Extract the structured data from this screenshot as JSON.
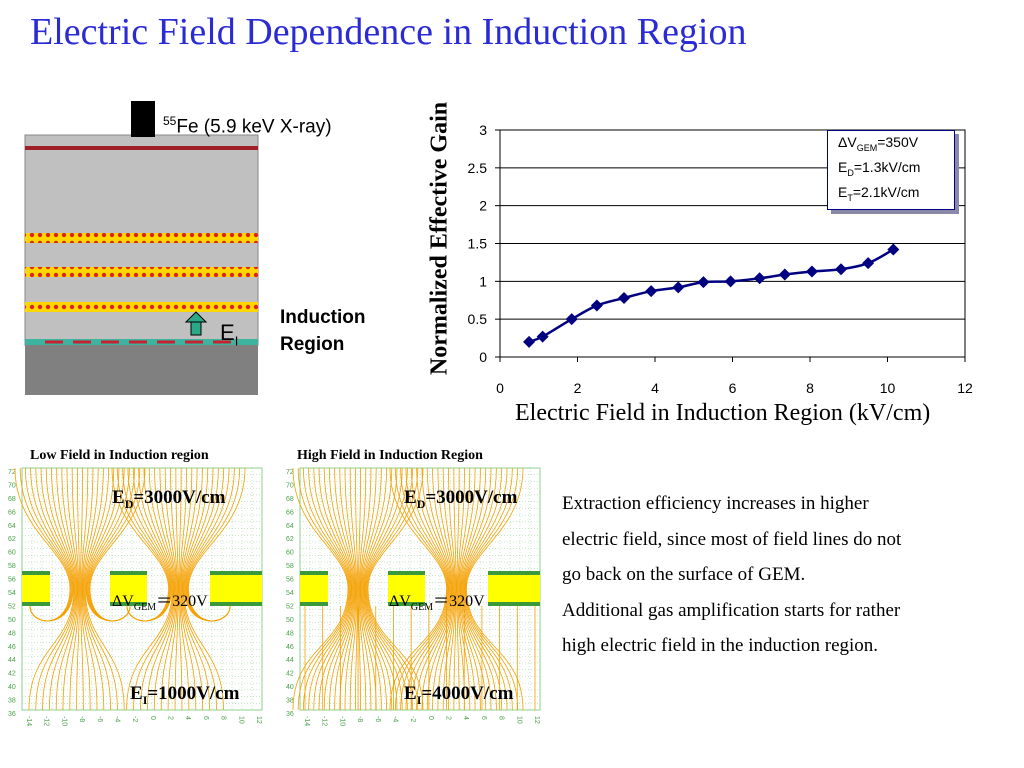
{
  "slide": {
    "title": "Electric Field Dependence in Induction Region"
  },
  "detector": {
    "source_sup": "55",
    "source_label": "Fe (5.9 keV X-ray)",
    "field_symbol": "E",
    "field_sub": "I",
    "region_line1": "Induction",
    "region_line2": "Region",
    "colors": {
      "drift": "#c0c0c0",
      "bottom": "#808080",
      "gem": "#ffd700",
      "gem_dots": "#dd2222",
      "top_line": "#a0202a",
      "readout": "#3cb4a0",
      "arrow": "#2aa888"
    }
  },
  "chart_data": {
    "type": "line",
    "xlabel": "Electric Field in Induction Region (kV/cm)",
    "ylabel": "Normalized Effective Gain",
    "xlim": [
      0,
      12
    ],
    "ylim": [
      0,
      3
    ],
    "xticks": [
      "0",
      "2",
      "4",
      "6",
      "8",
      "10",
      "12"
    ],
    "yticks": [
      "0",
      "0.5",
      "1",
      "1.5",
      "2",
      "2.5",
      "3"
    ],
    "grid": "horizontal",
    "legend_placement": "top-right",
    "legend": [
      {
        "sym": "ΔV",
        "sub": "GEM",
        "val": "=350V"
      },
      {
        "sym": "E",
        "sub": "D",
        "val": "=1.3kV/cm"
      },
      {
        "sym": "E",
        "sub": "T",
        "val": "=2.1kV/cm"
      }
    ],
    "series": [
      {
        "color": "#000080",
        "marker": "diamond",
        "x": [
          0.75,
          1.1,
          1.85,
          2.5,
          3.2,
          3.9,
          4.6,
          5.25,
          5.95,
          6.7,
          7.35,
          8.05,
          8.8,
          9.5,
          10.15
        ],
        "y": [
          0.2,
          0.27,
          0.5,
          0.68,
          0.78,
          0.87,
          0.92,
          0.99,
          1.0,
          1.04,
          1.09,
          1.13,
          1.16,
          1.24,
          1.42
        ]
      }
    ]
  },
  "panels": {
    "low": {
      "title": "Low Field in Induction region",
      "ed_sym": "E",
      "ed_sub": "D",
      "ed_val": "=3000V/cm",
      "vg_sym": "ΔV",
      "vg_sub": "GEM",
      "vg_val": "＝320V",
      "ei_sym": "E",
      "ei_sub": "I",
      "ei_val": "=1000V/cm",
      "yticks": [
        "72",
        "70",
        "68",
        "66",
        "64",
        "62",
        "60",
        "58",
        "56",
        "54",
        "52",
        "50",
        "48",
        "46",
        "44",
        "42",
        "40",
        "38",
        "36"
      ],
      "xticks": [
        "-14",
        "-12",
        "-10",
        "-8",
        "-6",
        "-4",
        "-2",
        "0",
        "2",
        "4",
        "6",
        "8",
        "10",
        "12"
      ]
    },
    "high": {
      "title": "High Field in Induction Region",
      "ed_sym": "E",
      "ed_sub": "D",
      "ed_val": "=3000V/cm",
      "vg_sym": "ΔV",
      "vg_sub": "GEM",
      "vg_val": "＝320V",
      "ei_sym": "E",
      "ei_sub": "I",
      "ei_val": "=4000V/cm",
      "yticks": [
        "72",
        "70",
        "68",
        "66",
        "64",
        "62",
        "60",
        "58",
        "56",
        "54",
        "52",
        "50",
        "48",
        "46",
        "44",
        "42",
        "40",
        "38",
        "36"
      ],
      "xticks": [
        "-14",
        "-12",
        "-10",
        "-8",
        "-6",
        "-4",
        "-2",
        "0",
        "2",
        "4",
        "6",
        "8",
        "10",
        "12"
      ]
    },
    "colors": {
      "field_line": "#f5a000",
      "gem": "#ffff00",
      "gem_border": "#3a9a3a",
      "grid": "#8fd08f",
      "tick": "#4aa04a"
    }
  },
  "description": {
    "lines": [
      "Extraction efficiency increases in higher",
      "electric field, since most of  field lines do not",
      "go back on the surface of GEM.",
      "Additional gas amplification starts for rather",
      " high electric field in the induction region."
    ]
  }
}
